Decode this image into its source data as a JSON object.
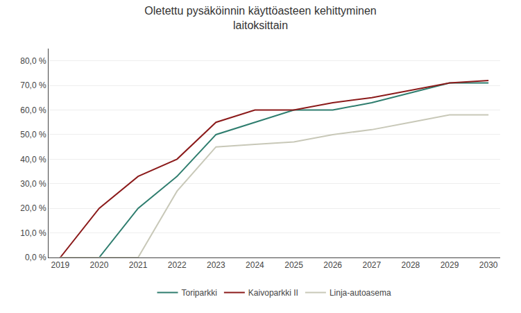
{
  "chart_data": {
    "type": "line",
    "title": "Oletettu pysäköinnin käyttöasteen kehittyminen\nlaitoksittain",
    "x": [
      2019,
      2020,
      2021,
      2022,
      2023,
      2024,
      2025,
      2026,
      2027,
      2028,
      2029,
      2030
    ],
    "series": [
      {
        "name": "Toriparkki",
        "color": "#2e7d6e",
        "values": [
          0.0,
          0.0,
          0.2,
          0.33,
          0.5,
          0.55,
          0.6,
          0.6,
          0.63,
          0.67,
          0.71,
          0.71
        ]
      },
      {
        "name": "Kaivoparkki II",
        "color": "#8b1a1a",
        "values": [
          0.0,
          0.2,
          0.33,
          0.4,
          0.55,
          0.6,
          0.6,
          0.63,
          0.65,
          0.68,
          0.71,
          0.72
        ]
      },
      {
        "name": "Linja-autoasema",
        "color": "#c8c8b8",
        "values": [
          0.0,
          0.0,
          0.0,
          0.27,
          0.45,
          0.46,
          0.47,
          0.5,
          0.52,
          0.55,
          0.58,
          0.58
        ]
      }
    ],
    "xlim": [
      2018.7,
      2030.3
    ],
    "xticks": [
      2019,
      2020,
      2021,
      2022,
      2023,
      2024,
      2025,
      2026,
      2027,
      2028,
      2029,
      2030
    ],
    "ylim": [
      0.0,
      0.85
    ],
    "yticks": [
      {
        "value": 0.0,
        "label": "0,0 %"
      },
      {
        "value": 0.1,
        "label": "10,0 %"
      },
      {
        "value": 0.2,
        "label": "20,0 %"
      },
      {
        "value": 0.3,
        "label": "30,0 %"
      },
      {
        "value": 0.4,
        "label": "40,0 %"
      },
      {
        "value": 0.5,
        "label": "50,0 %"
      },
      {
        "value": 0.6,
        "label": "60,0 %"
      },
      {
        "value": 0.7,
        "label": "70,0 %"
      },
      {
        "value": 0.8,
        "label": "80,0 %"
      }
    ],
    "grid": true,
    "legend": "bottom"
  }
}
